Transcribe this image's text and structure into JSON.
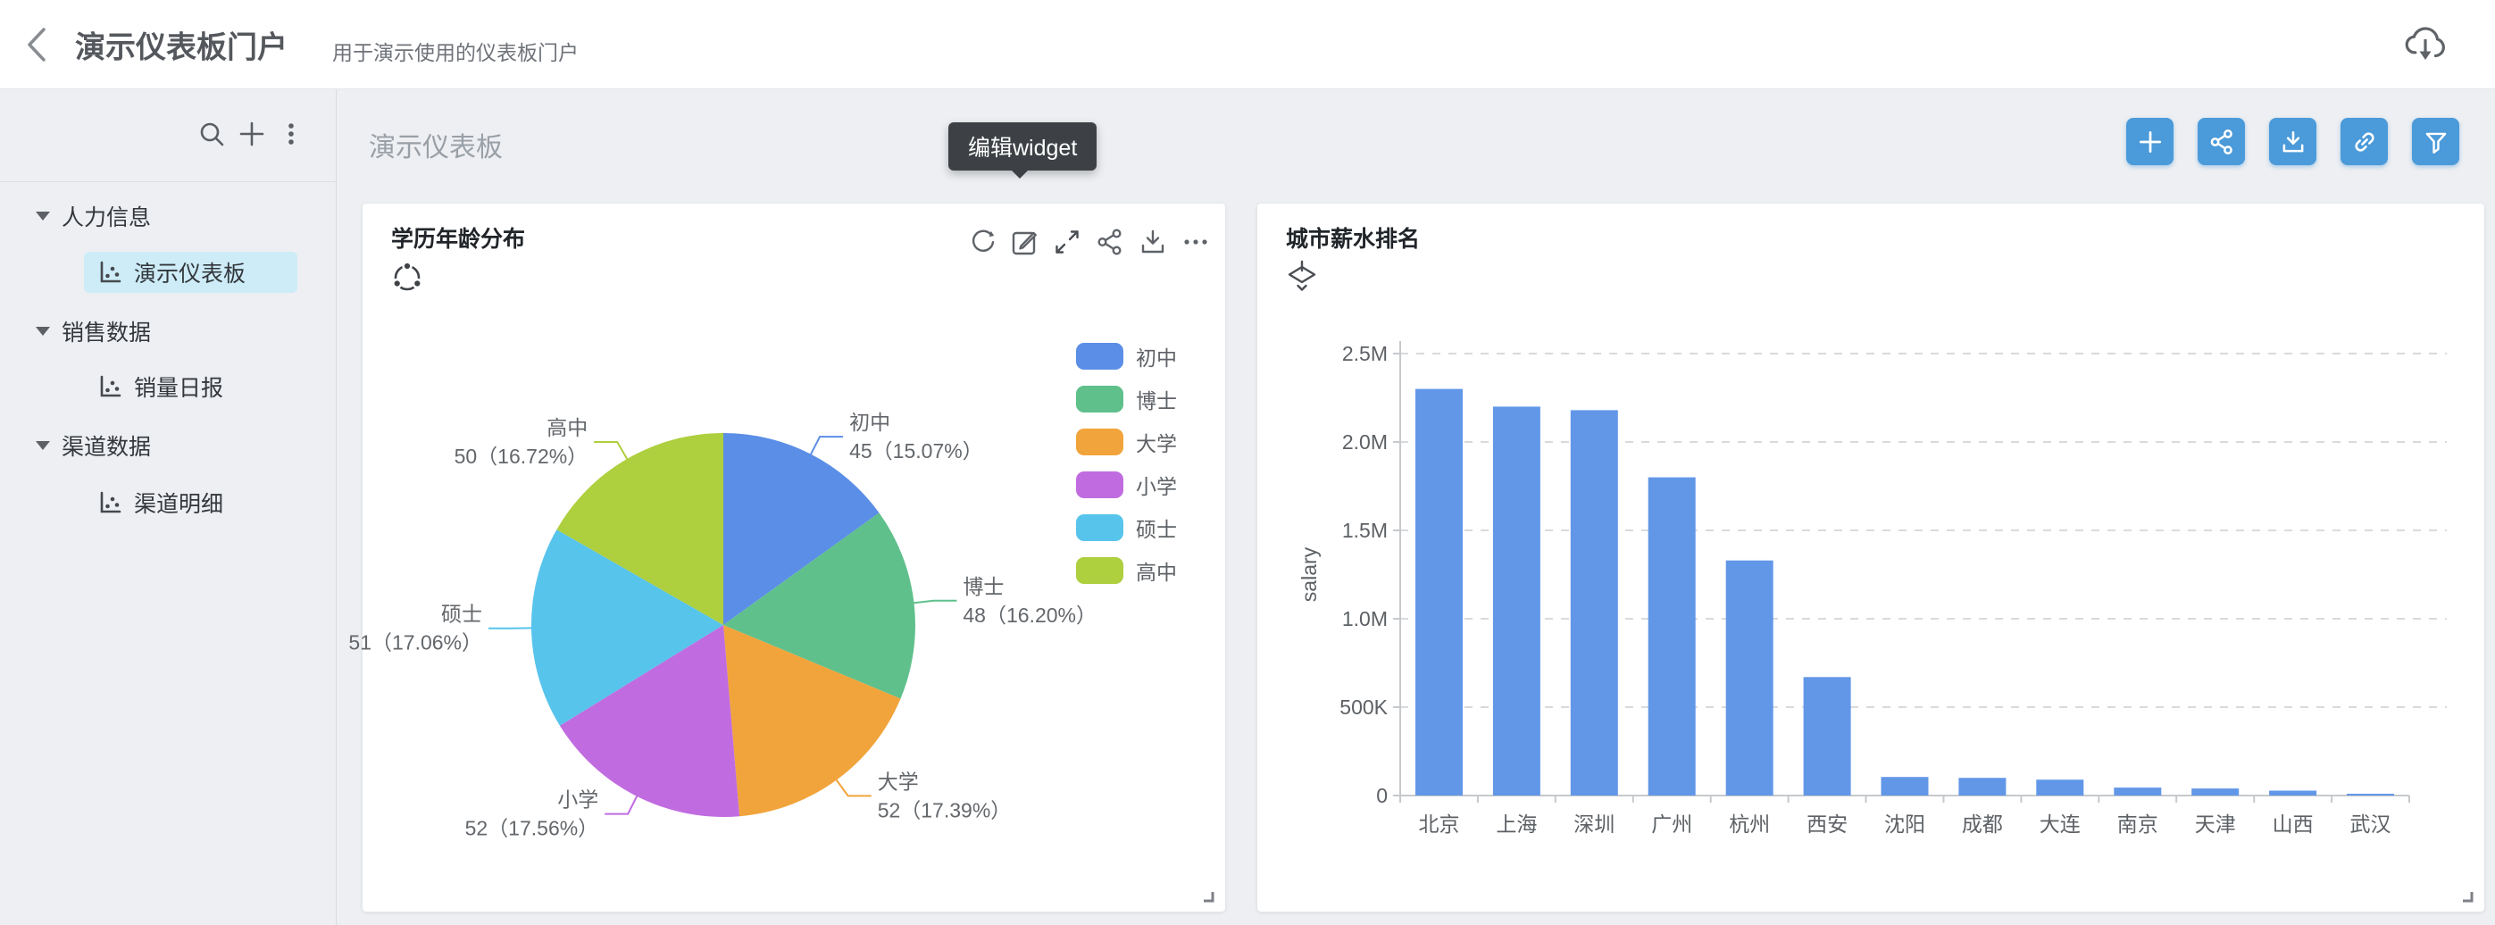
{
  "header": {
    "title": "演示仪表板门户",
    "subtitle": "用于演示使用的仪表板门户"
  },
  "sidebar": {
    "groups": [
      {
        "label": "人力信息",
        "items": [
          {
            "label": "演示仪表板",
            "selected": true
          }
        ]
      },
      {
        "label": "销售数据",
        "items": [
          {
            "label": "销量日报",
            "selected": false
          }
        ]
      },
      {
        "label": "渠道数据",
        "items": [
          {
            "label": "渠道明细",
            "selected": false
          }
        ]
      }
    ]
  },
  "main": {
    "page_title": "演示仪表板",
    "tooltip": "编辑widget"
  },
  "colors": {
    "accent_button": "#4b9ad9",
    "selected_item_bg": "#cdecf7"
  },
  "chart_data": [
    {
      "type": "pie",
      "title": "学历年龄分布",
      "legend_position": "right",
      "series": [
        {
          "name": "初中",
          "value": 45,
          "percent": 15.07,
          "label": "45（15.07%）",
          "color": "#5b8ee6"
        },
        {
          "name": "博士",
          "value": 48,
          "percent": 16.2,
          "label": "48（16.20%）",
          "color": "#5fc08b"
        },
        {
          "name": "大学",
          "value": 52,
          "percent": 17.39,
          "label": "52（17.39%）",
          "color": "#f1a43b"
        },
        {
          "name": "小学",
          "value": 52,
          "percent": 17.56,
          "label": "52（17.56%）",
          "color": "#c06ce0"
        },
        {
          "name": "硕士",
          "value": 51,
          "percent": 17.06,
          "label": "51（17.06%）",
          "color": "#57c4ec"
        },
        {
          "name": "高中",
          "value": 50,
          "percent": 16.72,
          "label": "50（16.72%）",
          "color": "#aecf3e"
        }
      ]
    },
    {
      "type": "bar",
      "title": "城市薪水排名",
      "ylabel": "salary",
      "ylim": [
        0,
        2500000
      ],
      "ytick_labels": [
        "0",
        "500K",
        "1.0M",
        "1.5M",
        "2.0M",
        "2.5M"
      ],
      "categories": [
        "北京",
        "上海",
        "深圳",
        "广州",
        "杭州",
        "西安",
        "沈阳",
        "成都",
        "大连",
        "南京",
        "天津",
        "山西",
        "武汉"
      ],
      "values": [
        2300000,
        2200000,
        2180000,
        1800000,
        1330000,
        670000,
        105000,
        100000,
        90000,
        45000,
        40000,
        28000,
        10000
      ],
      "bar_color": "#6297e8",
      "grid": true,
      "legend_position": "none"
    }
  ]
}
